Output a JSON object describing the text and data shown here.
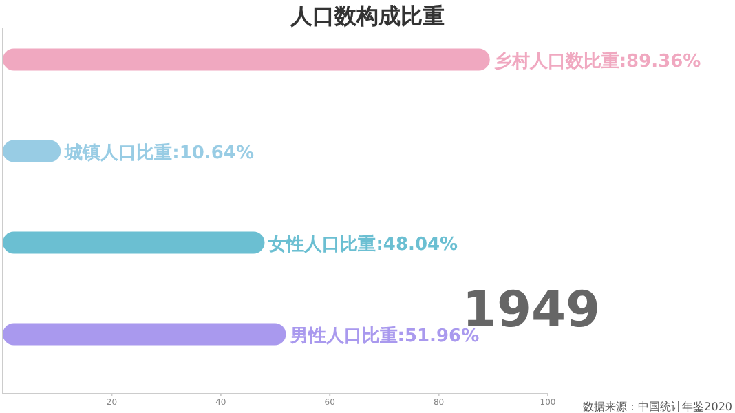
{
  "chart_data": {
    "type": "bar",
    "orientation": "horizontal",
    "title": "人口数构成比重",
    "categories": [
      null,
      null,
      null,
      null
    ],
    "values": [
      89.36,
      10.64,
      48.04,
      51.96
    ],
    "colors": [
      "#f0a8c0",
      "#98cce4",
      "#6bbfd2",
      "#a999ee"
    ],
    "value_labels": [
      "乡村人口数比重:89.36%",
      "城镇人口比重:10.64%",
      "女性人口比重:48.04%",
      "男性人口比重:51.96%"
    ],
    "xlim": [
      0,
      100
    ],
    "xticks": [
      20,
      40,
      60,
      80,
      100
    ],
    "grid": false,
    "annotations": [
      "1949",
      "数据来源：中国统计年鉴2020"
    ]
  }
}
